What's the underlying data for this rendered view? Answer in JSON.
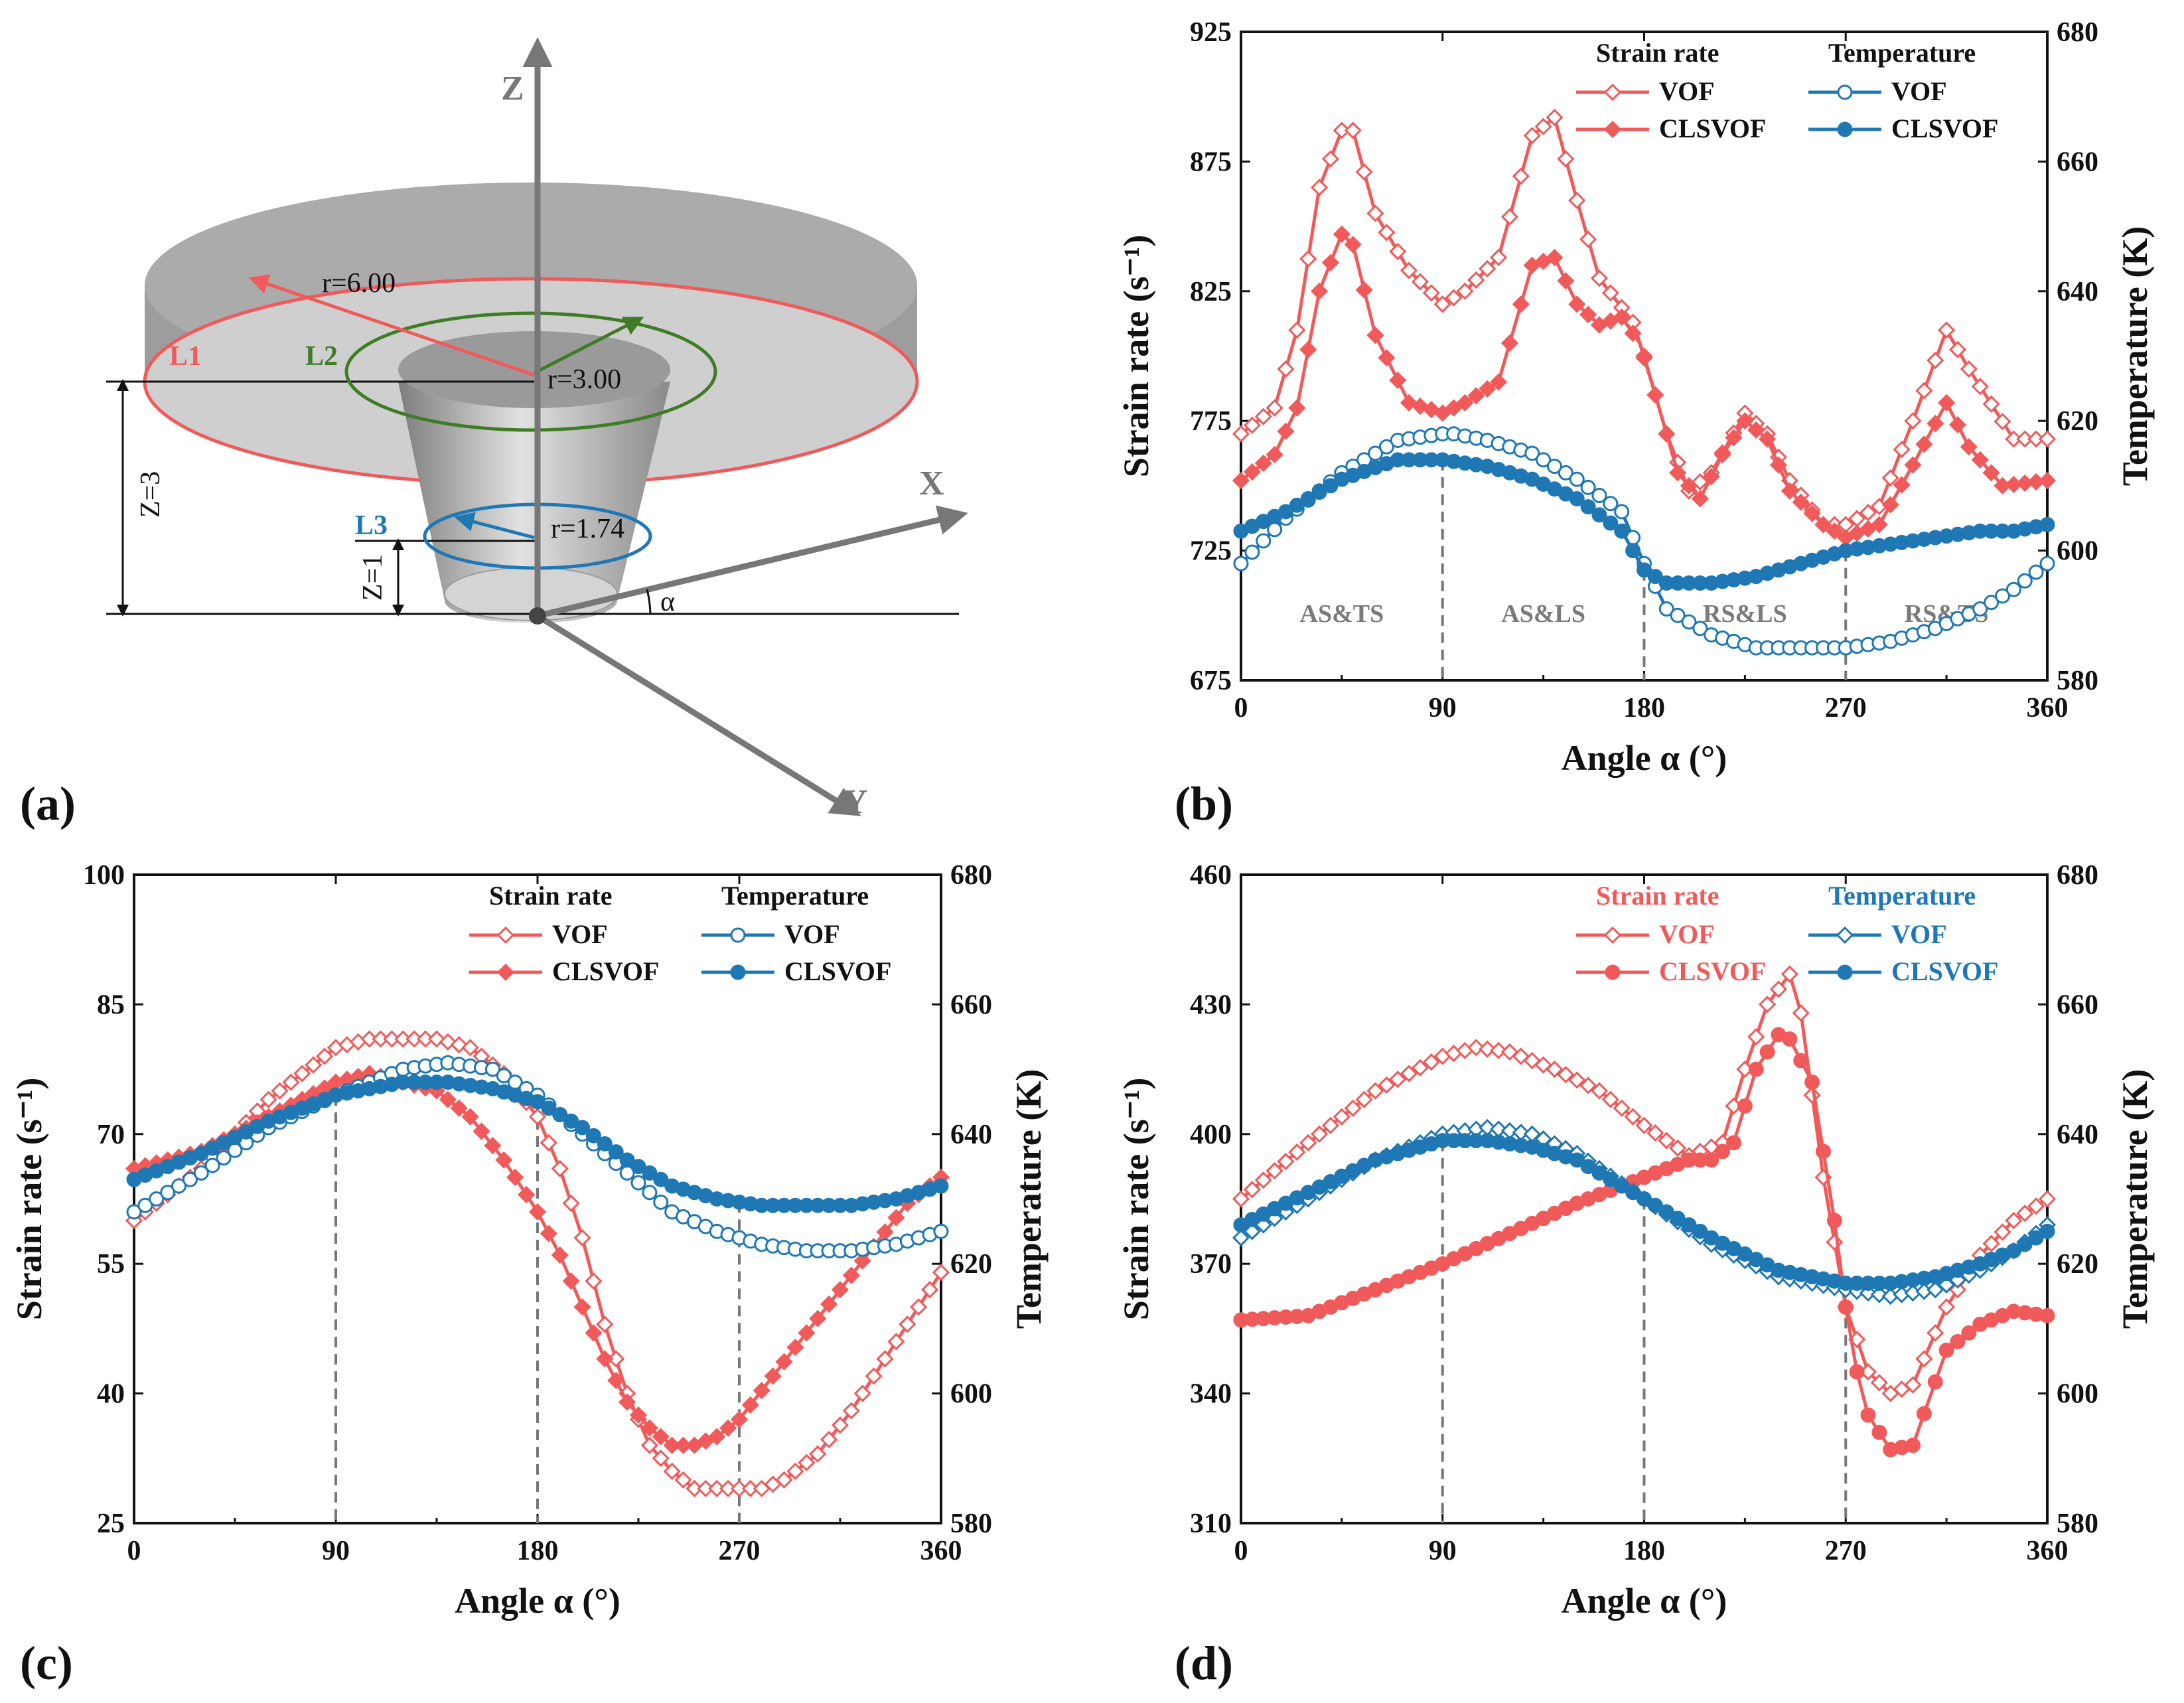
{
  "panel_labels": {
    "a": "(a)",
    "b": "(b)",
    "c": "(c)",
    "d": "(d)"
  },
  "colors": {
    "red": "#f05a5a",
    "blue": "#1f78b4",
    "gray": "#777777",
    "green": "#3e7d25"
  },
  "schematic": {
    "axis_labels": {
      "z": "Z",
      "x": "X",
      "y": "Y",
      "alpha": "α"
    },
    "line_labels": {
      "l1": "L1",
      "l2": "L2",
      "l3": "L3"
    },
    "radii": {
      "r1": "r=6.00",
      "r2": "r=3.00",
      "r3": "r=1.74"
    },
    "heights": {
      "z3": "Z=3",
      "z1": "Z=1"
    }
  },
  "chart_data": [
    {
      "id": "b",
      "type": "line",
      "xlabel": "Angle α (°)",
      "ylabel": "Strain rate (s⁻¹)",
      "y2label": "Temperature (K)",
      "xlim": [
        0,
        360
      ],
      "xticks": [
        "0",
        "90",
        "180",
        "270",
        "360"
      ],
      "ylim": [
        675,
        925
      ],
      "yticks": [
        "675",
        "725",
        "775",
        "825",
        "875",
        "925"
      ],
      "y2lim": [
        580,
        680
      ],
      "y2ticks": [
        "580",
        "600",
        "620",
        "640",
        "660",
        "680"
      ],
      "legend": {
        "left_header": "Strain rate",
        "right_header": "Temperature",
        "vof": "VOF",
        "clsvof": "CLSVOF",
        "header_color": "black"
      },
      "vlines": [
        90,
        180,
        270
      ],
      "regions": [
        {
          "label": "AS&TS",
          "x": 45
        },
        {
          "label": "AS&LS",
          "x": 135
        },
        {
          "label": "RS&LS",
          "x": 225
        },
        {
          "label": "RS&TS",
          "x": 315
        }
      ],
      "series": [
        {
          "name": "Strain rate VOF",
          "axis": "left",
          "color": "red",
          "marker": "diamond-open",
          "x": [
            0,
            15,
            25,
            35,
            45,
            50,
            60,
            75,
            90,
            100,
            115,
            130,
            140,
            150,
            160,
            175,
            180,
            190,
            200,
            210,
            225,
            235,
            245,
            260,
            270,
            285,
            300,
            315,
            325,
            345,
            360
          ],
          "y": [
            770,
            780,
            810,
            865,
            887,
            887,
            855,
            833,
            820,
            825,
            838,
            885,
            892,
            860,
            830,
            813,
            800,
            770,
            748,
            755,
            778,
            770,
            752,
            735,
            735,
            742,
            775,
            810,
            795,
            768,
            768
          ]
        },
        {
          "name": "Strain rate CLSVOF",
          "axis": "left",
          "color": "red",
          "marker": "diamond-filled",
          "x": [
            0,
            15,
            25,
            35,
            45,
            50,
            60,
            75,
            90,
            100,
            115,
            130,
            140,
            150,
            160,
            170,
            178,
            185,
            195,
            205,
            215,
            225,
            235,
            245,
            260,
            270,
            285,
            300,
            315,
            325,
            340,
            360
          ],
          "y": [
            752,
            762,
            780,
            825,
            847,
            843,
            808,
            782,
            778,
            782,
            790,
            835,
            838,
            820,
            812,
            815,
            805,
            785,
            755,
            745,
            762,
            775,
            768,
            748,
            735,
            730,
            735,
            758,
            782,
            765,
            750,
            752
          ]
        },
        {
          "name": "Temperature VOF",
          "axis": "right",
          "color": "blue",
          "marker": "circle-open",
          "x": [
            0,
            20,
            45,
            70,
            90,
            95,
            110,
            130,
            150,
            170,
            180,
            190,
            210,
            230,
            250,
            270,
            290,
            310,
            330,
            345,
            360
          ],
          "y": [
            598,
            605,
            612,
            617,
            618,
            618,
            617,
            615,
            611,
            606,
            598,
            591,
            587,
            585,
            585,
            585,
            586,
            588,
            591,
            594,
            598
          ]
        },
        {
          "name": "Temperature CLSVOF",
          "axis": "right",
          "color": "blue",
          "marker": "circle-filled",
          "x": [
            0,
            20,
            45,
            70,
            90,
            110,
            130,
            150,
            170,
            180,
            190,
            210,
            230,
            250,
            270,
            290,
            310,
            330,
            345,
            360
          ],
          "y": [
            603,
            606,
            611,
            614,
            614,
            613,
            611,
            608,
            603,
            597,
            595,
            595,
            596,
            598,
            600,
            601,
            602,
            603,
            603,
            604
          ]
        }
      ]
    },
    {
      "id": "c",
      "type": "line",
      "xlabel": "Angle α (°)",
      "ylabel": "Strain rate (s⁻¹)",
      "y2label": "Temperature (K)",
      "xlim": [
        0,
        360
      ],
      "xticks": [
        "0",
        "90",
        "180",
        "270",
        "360"
      ],
      "ylim": [
        25,
        100
      ],
      "yticks": [
        "25",
        "40",
        "55",
        "70",
        "85",
        "100"
      ],
      "y2lim": [
        580,
        680
      ],
      "y2ticks": [
        "580",
        "600",
        "620",
        "640",
        "660",
        "680"
      ],
      "legend": {
        "left_header": "Strain rate",
        "right_header": "Temperature",
        "vof": "VOF",
        "clsvof": "CLSVOF",
        "header_color": "black"
      },
      "vlines": [
        90,
        180,
        270
      ],
      "regions": [],
      "series": [
        {
          "name": "Strain rate VOF",
          "axis": "left",
          "color": "red",
          "marker": "diamond-open",
          "x": [
            0,
            30,
            60,
            90,
            105,
            120,
            135,
            150,
            165,
            180,
            190,
            200,
            210,
            220,
            230,
            240,
            250,
            260,
            270,
            280,
            290,
            305,
            320,
            335,
            350,
            360
          ],
          "y": [
            60,
            66,
            74,
            80,
            81,
            81,
            81,
            80,
            77,
            72,
            66,
            58,
            48,
            40,
            34,
            31,
            29,
            29,
            29,
            29,
            30,
            33,
            38,
            44,
            50,
            54
          ]
        },
        {
          "name": "Strain rate CLSVOF",
          "axis": "left",
          "color": "red",
          "marker": "diamond-filled",
          "x": [
            0,
            30,
            60,
            90,
            105,
            120,
            135,
            150,
            165,
            180,
            190,
            200,
            210,
            220,
            230,
            240,
            250,
            260,
            270,
            285,
            300,
            315,
            330,
            345,
            360
          ],
          "y": [
            66,
            68,
            72,
            76,
            77,
            76,
            75,
            72,
            67,
            61,
            56,
            50,
            44,
            39,
            36,
            34,
            34,
            35,
            37,
            42,
            47,
            52,
            57,
            62,
            65
          ]
        },
        {
          "name": "Temperature VOF",
          "axis": "right",
          "color": "blue",
          "marker": "circle-open",
          "x": [
            0,
            30,
            60,
            90,
            120,
            140,
            160,
            180,
            200,
            220,
            240,
            260,
            280,
            300,
            320,
            340,
            360
          ],
          "y": [
            628,
            634,
            641,
            646,
            650,
            651,
            650,
            646,
            640,
            634,
            628,
            625,
            623,
            622,
            622,
            623,
            625
          ]
        },
        {
          "name": "Temperature CLSVOF",
          "axis": "right",
          "color": "blue",
          "marker": "circle-filled",
          "x": [
            0,
            30,
            60,
            90,
            120,
            140,
            160,
            180,
            200,
            220,
            240,
            260,
            280,
            300,
            320,
            340,
            360
          ],
          "y": [
            633,
            637,
            642,
            646,
            648,
            648,
            647,
            645,
            641,
            636,
            632,
            630,
            629,
            629,
            629,
            630,
            632
          ]
        }
      ]
    },
    {
      "id": "d",
      "type": "line",
      "xlabel": "Angle α (°)",
      "ylabel": "Strain rate (s⁻¹)",
      "y2label": "Temperature (K)",
      "xlim": [
        0,
        360
      ],
      "xticks": [
        "0",
        "90",
        "180",
        "270",
        "360"
      ],
      "ylim": [
        310,
        460
      ],
      "yticks": [
        "310",
        "340",
        "370",
        "400",
        "430",
        "460"
      ],
      "y2lim": [
        580,
        680
      ],
      "y2ticks": [
        "580",
        "600",
        "620",
        "640",
        "660",
        "680"
      ],
      "legend": {
        "left_header": "Strain rate",
        "right_header": "Temperature",
        "vof": "VOF",
        "clsvof": "CLSVOF",
        "header_color": "colored"
      },
      "vlines": [
        90,
        180,
        270
      ],
      "regions": [],
      "series": [
        {
          "name": "Strain rate VOF",
          "axis": "left",
          "color": "red",
          "marker": "diamond-open",
          "x": [
            0,
            30,
            60,
            90,
            105,
            120,
            140,
            160,
            180,
            200,
            215,
            225,
            235,
            245,
            250,
            260,
            270,
            280,
            290,
            300,
            315,
            330,
            345,
            360
          ],
          "y": [
            385,
            398,
            410,
            418,
            420,
            419,
            415,
            410,
            402,
            395,
            398,
            415,
            430,
            437,
            428,
            390,
            360,
            345,
            340,
            342,
            360,
            372,
            380,
            385
          ]
        },
        {
          "name": "Strain rate CLSVOF",
          "axis": "left",
          "color": "red",
          "marker": "circle-filled",
          "x": [
            0,
            30,
            60,
            90,
            120,
            150,
            180,
            200,
            210,
            220,
            230,
            240,
            245,
            255,
            265,
            270,
            275,
            280,
            290,
            300,
            315,
            330,
            345,
            360
          ],
          "y": [
            357,
            358,
            364,
            370,
            377,
            384,
            390,
            394,
            394,
            398,
            415,
            423,
            422,
            412,
            380,
            360,
            345,
            335,
            327,
            328,
            350,
            356,
            359,
            358
          ]
        },
        {
          "name": "Temperature VOF",
          "axis": "right",
          "color": "blue",
          "marker": "diamond-open",
          "x": [
            0,
            30,
            60,
            90,
            110,
            130,
            150,
            180,
            210,
            240,
            270,
            290,
            310,
            330,
            345,
            360
          ],
          "y": [
            624,
            630,
            636,
            640,
            641,
            640,
            637,
            630,
            623,
            618,
            616,
            615,
            616,
            619,
            622,
            626
          ]
        },
        {
          "name": "Temperature CLSVOF",
          "axis": "right",
          "color": "blue",
          "marker": "circle-filled",
          "x": [
            0,
            30,
            60,
            90,
            110,
            130,
            150,
            180,
            210,
            240,
            270,
            290,
            310,
            330,
            345,
            360
          ],
          "y": [
            626,
            631,
            636,
            639,
            639,
            638,
            636,
            630,
            624,
            619,
            617,
            617,
            618,
            620,
            622,
            625
          ]
        }
      ]
    }
  ]
}
